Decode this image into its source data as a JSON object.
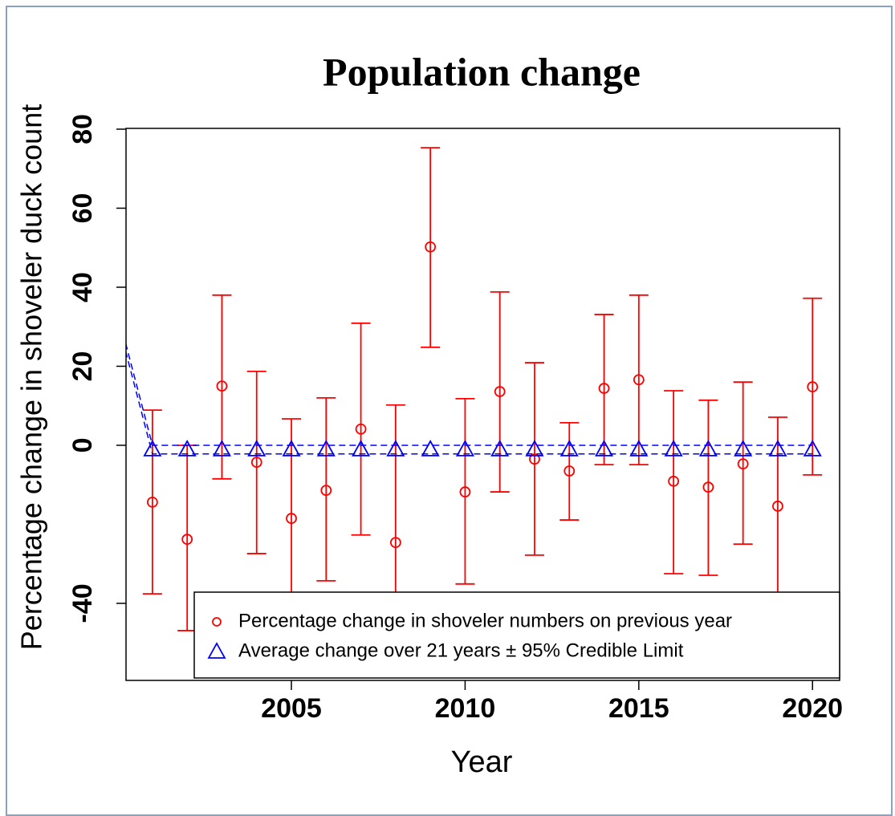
{
  "chart_data": {
    "type": "errorbar",
    "title": "Population change",
    "x_label": "Year",
    "y_label": "Percentage change in shoveler duck count",
    "x": [
      2000,
      2001,
      2002,
      2003,
      2004,
      2005,
      2006,
      2007,
      2008,
      2009,
      2010,
      2011,
      2012,
      2013,
      2014,
      2015,
      2016,
      2017,
      2018,
      2019,
      2020
    ],
    "series": [
      {
        "name": "Percentage change in shoveler numbers on previous year",
        "color": "#ff0000",
        "marker": "circle",
        "values": [
          null,
          -14.4,
          -23.8,
          15.0,
          -4.3,
          -18.5,
          -11.4,
          4.1,
          -24.6,
          50.2,
          -11.8,
          13.6,
          -3.5,
          -6.5,
          14.4,
          16.6,
          -9.1,
          -10.6,
          -4.7,
          -15.4,
          14.8
        ],
        "lower": [
          null,
          -37.6,
          -46.9,
          -8.5,
          -27.4,
          -43,
          -34.3,
          -22.7,
          -48,
          24.8,
          -35.1,
          -11.8,
          -27.8,
          -18.9,
          -4.9,
          -4.9,
          -32.5,
          -32.9,
          -25.0,
          -39,
          -7.5
        ],
        "upper": [
          null,
          8.9,
          0,
          38.0,
          18.7,
          6.7,
          12.0,
          30.9,
          10.2,
          75.3,
          11.8,
          38.8,
          20.9,
          5.7,
          33.1,
          38.0,
          13.8,
          11.4,
          16.0,
          7.1,
          37.2
        ]
      },
      {
        "name": "Average change over 21 years ± 95% Credible Limit",
        "color": "#0000ff",
        "marker": "triangle",
        "values": [
          null,
          -1,
          -1,
          -1,
          -1,
          -1,
          -1,
          -1,
          -1,
          -1,
          -1,
          -1,
          -1,
          -1,
          -1,
          -1,
          -1,
          -1,
          -1,
          -1,
          -1
        ],
        "lower": [
          31.5,
          -2.2,
          -2.2,
          -2.2,
          -2.2,
          -2.2,
          -2.2,
          -2.2,
          -2.2,
          -2.2,
          -2.2,
          -2.2,
          -2.2,
          -2.2,
          -2.2,
          -2.2,
          -2.2,
          -2.2,
          -2.2,
          -2.2,
          -2.2
        ],
        "upper": [
          33.5,
          0,
          0,
          0,
          0,
          0,
          0,
          0,
          0,
          0,
          0,
          0,
          0,
          0,
          0,
          0,
          0,
          0,
          0,
          0,
          0
        ]
      }
    ],
    "xlim": [
      2000.24,
      2020.78
    ],
    "xticks": [
      2005,
      2010,
      2015,
      2020
    ],
    "ylim": [
      -59.5,
      80.2
    ],
    "yticks": [
      -40,
      0,
      20,
      40,
      60,
      80
    ],
    "legend": "bottom-right"
  }
}
